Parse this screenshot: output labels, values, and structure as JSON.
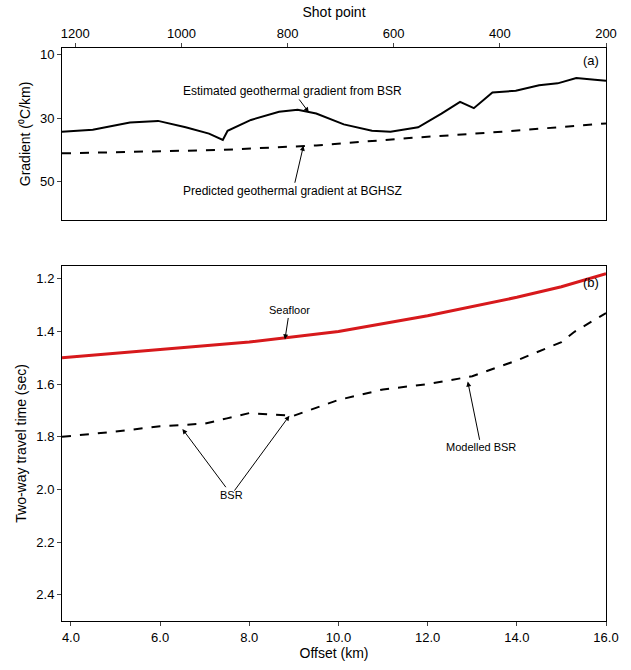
{
  "chart_data": [
    {
      "type": "line",
      "panel_label": "(a)",
      "x_title": "Shot point",
      "y_title": "Gradient (⁰C/km)",
      "xlim": [
        1225,
        200
      ],
      "xticks": [
        1200,
        1000,
        800,
        600,
        400,
        200
      ],
      "ylim": [
        62,
        8
      ],
      "yticks": [
        10,
        30,
        50
      ],
      "grid": false,
      "series": [
        {
          "name": "Estimated geothermal gradient from BSR",
          "color": "#000000",
          "line_style": "solid",
          "x": [
            1225,
            1167,
            1097,
            1044,
            992,
            948,
            922,
            913,
            869,
            816,
            781,
            746,
            694,
            641,
            606,
            554,
            510,
            475,
            449,
            414,
            370,
            326,
            291,
            256,
            221,
            200
          ],
          "values": [
            34.3,
            33.7,
            31.4,
            30.9,
            32.9,
            34.9,
            36.9,
            34.0,
            30.6,
            28.0,
            27.4,
            28.6,
            32.0,
            34.0,
            34.3,
            32.9,
            28.6,
            24.9,
            26.9,
            22.0,
            21.4,
            19.7,
            19.1,
            17.4,
            18.0,
            18.3
          ],
          "label": {
            "x": 790,
            "y": 21.5,
            "arrow_x": 760,
            "arrow_y": 28.2
          }
        },
        {
          "name": "Predicted geothermal gradient at BGHSZ",
          "color": "#000000",
          "line_style": "dash",
          "x": [
            1225,
            922,
            746,
            571,
            396,
            200
          ],
          "values": [
            41.1,
            40.0,
            38.6,
            36.3,
            34.3,
            31.7
          ],
          "label": {
            "x": 790,
            "y": 53,
            "arrow_x": 770,
            "arrow_y": 38.7
          }
        }
      ]
    },
    {
      "type": "line",
      "panel_label": "(b)",
      "x_title": "Offset (km)",
      "y_title": "Two-way travel time (sec)",
      "xlim": [
        3.8,
        16.0
      ],
      "xticks": [
        {
          "value": 4,
          "label": "4.0"
        },
        {
          "value": 6,
          "label": "6.0"
        },
        {
          "value": 8,
          "label": "8.0"
        },
        {
          "value": 10,
          "label": "10.0"
        },
        {
          "value": 12,
          "label": "12.0"
        },
        {
          "value": 14,
          "label": "14.0"
        },
        {
          "value": 16,
          "label": "16.0"
        }
      ],
      "ylim": [
        2.5,
        1.15
      ],
      "yticks": [
        1.2,
        1.4,
        1.6,
        1.8,
        {
          "value": 2,
          "label": "2.0"
        },
        2.2,
        2.4
      ],
      "grid": false,
      "series": [
        {
          "name": "Seafloor",
          "color": "#d7191c",
          "line_style": "solid",
          "x": [
            3.8,
            6,
            8,
            10,
            12,
            14,
            15,
            16
          ],
          "values": [
            1.5,
            1.47,
            1.44,
            1.4,
            1.34,
            1.27,
            1.23,
            1.18
          ],
          "label": {
            "x": 8.9,
            "y": 1.32,
            "arrow_x": 8.8,
            "arrow_y": 1.43
          }
        },
        {
          "name": "Modelled BSR",
          "color": "#000000",
          "line_style": "dash",
          "x": [
            3.8,
            5,
            6,
            7,
            7.5,
            8,
            9,
            10,
            11,
            12,
            13,
            14,
            15,
            15.3,
            16
          ],
          "values": [
            1.8,
            1.78,
            1.76,
            1.75,
            1.73,
            1.71,
            1.72,
            1.66,
            1.62,
            1.6,
            1.57,
            1.51,
            1.44,
            1.4,
            1.33
          ],
          "label": {
            "x": 13.2,
            "y": 1.84,
            "arrow_x": 12.9,
            "arrow_y": 1.59
          }
        }
      ],
      "annotations": [
        {
          "text": "BSR",
          "x": 7.6,
          "y": 2.02,
          "arrows_to": [
            {
              "x": 6.5,
              "y": 1.77
            },
            {
              "x": 8.9,
              "y": 1.72
            }
          ]
        }
      ]
    }
  ]
}
